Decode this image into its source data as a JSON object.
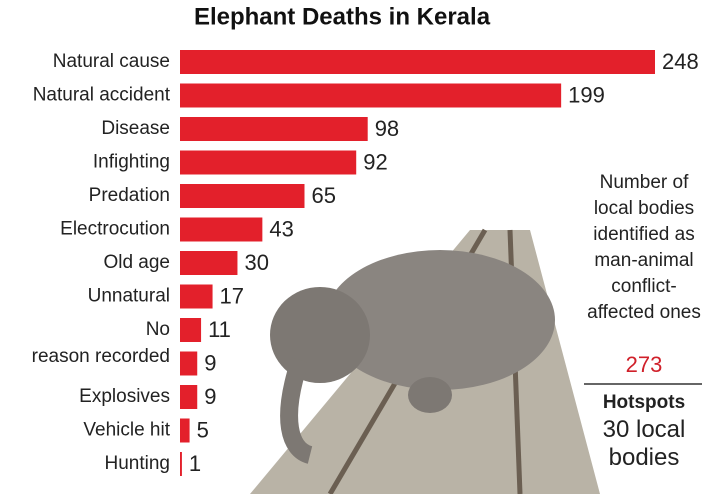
{
  "chart_data": {
    "type": "bar",
    "orientation": "horizontal",
    "title": "Elephant Deaths in Kerala",
    "categories": [
      "Natural cause",
      "Natural accident",
      "Disease",
      "Infighting",
      "Predation",
      "Electrocution",
      "Old age",
      "Unnatural",
      "No reason recorded",
      null,
      "Explosives",
      "Vehicle hit",
      "Hunting"
    ],
    "values": [
      248,
      199,
      98,
      92,
      65,
      43,
      30,
      17,
      11,
      9,
      9,
      5,
      1
    ],
    "color": "#e3202b",
    "xlim": [
      0,
      248
    ]
  },
  "panel": {
    "caption": "Number of local bodies identified as man-animal conflict-affected ones",
    "figure": 273,
    "hotspots_title": "Hotspots",
    "hotspots_text": "30 local bodies"
  }
}
